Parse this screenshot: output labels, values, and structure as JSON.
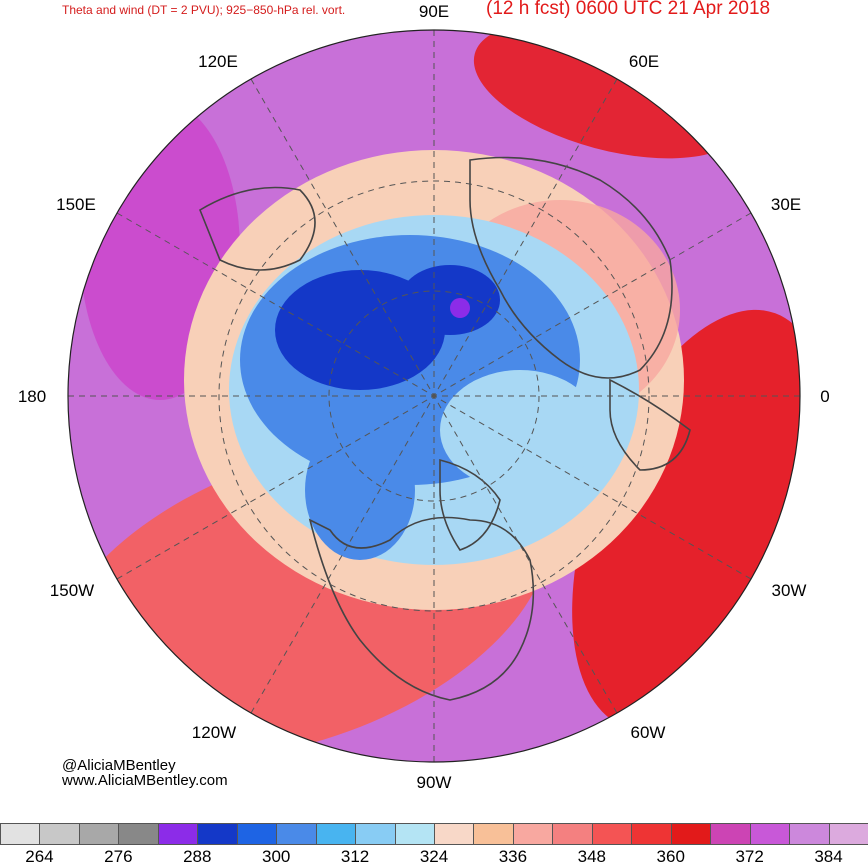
{
  "header": {
    "title": "Theta and wind (DT = 2 PVU); 925−850-hPa rel. vort.",
    "forecast": "(12 h fcst) 0600 UTC 21 Apr 2018"
  },
  "credits": {
    "handle": "@AliciaMBentley",
    "website": "www.AliciaMBentley.com"
  },
  "map": {
    "projection": "north-polar-stereographic",
    "longitude_labels": {
      "lon_90e": "90E",
      "lon_60e": "60E",
      "lon_120e": "120E",
      "lon_30e": "30E",
      "lon_150e": "150E",
      "lon_0": "0",
      "lon_180": "180",
      "lon_150w": "150W",
      "lon_30w": "30W",
      "lon_120w": "120W",
      "lon_60w": "60W",
      "lon_90w": "90W"
    },
    "colors": {
      "coldest": "#1438c8",
      "cold": "#4a8ae8",
      "cool": "#a8d8f4",
      "mild": "#f8d0b8",
      "warm": "#f46060",
      "hot": "#e81818",
      "hotter": "#cc44cc",
      "hottest": "#c870d8"
    }
  },
  "colorbar": {
    "colors": [
      "#e2e2e2",
      "#c8c8c8",
      "#a8a8a8",
      "#888888",
      "#8c2ce8",
      "#1438c8",
      "#1e64e4",
      "#4a8ae8",
      "#48b4f0",
      "#88ccf4",
      "#b4e4f4",
      "#f8d8c8",
      "#f8c098",
      "#f8a8a0",
      "#f48080",
      "#f45454",
      "#ee3434",
      "#e21a1a",
      "#cc44b4",
      "#c858d8",
      "#cc88dc",
      "#dcaade"
    ],
    "labels": [
      "264",
      "276",
      "288",
      "300",
      "312",
      "324",
      "336",
      "348",
      "360",
      "372",
      "384"
    ]
  }
}
